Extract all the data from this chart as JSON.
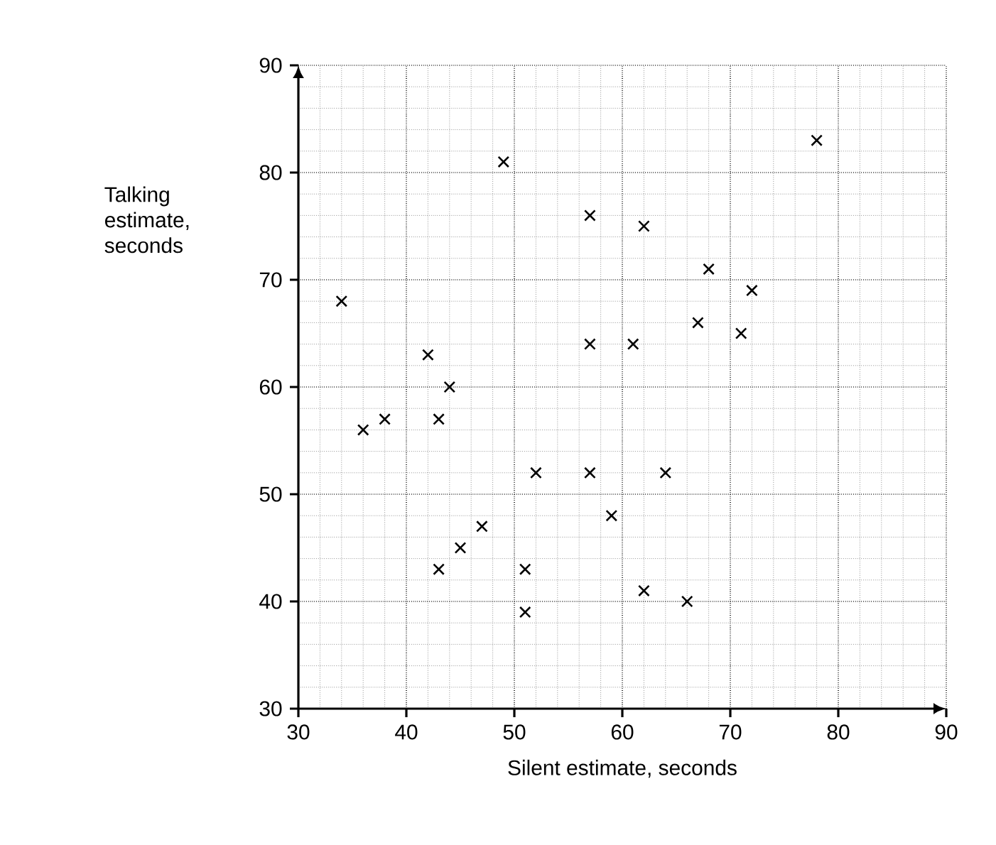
{
  "chart_data": {
    "type": "scatter",
    "xlabel": "Silent estimate, seconds",
    "ylabel": "Talking estimate, seconds",
    "x": [
      34,
      36,
      38,
      42,
      43,
      44,
      43,
      45,
      47,
      49,
      51,
      51,
      52,
      57,
      57,
      57,
      59,
      61,
      62,
      62,
      64,
      66,
      67,
      68,
      71,
      72,
      78
    ],
    "values": [
      68,
      56,
      57,
      63,
      57,
      60,
      43,
      45,
      47,
      81,
      43,
      39,
      52,
      76,
      64,
      52,
      48,
      64,
      75,
      41,
      52,
      40,
      66,
      71,
      65,
      69,
      83
    ],
    "color": "#000000",
    "marker": "cross",
    "xlim": [
      30,
      90
    ],
    "ylim": [
      30,
      90
    ],
    "xticks": [
      30,
      40,
      50,
      60,
      70,
      80,
      90
    ],
    "yticks": [
      30,
      40,
      50,
      60,
      70,
      80,
      90
    ],
    "grid": true
  }
}
